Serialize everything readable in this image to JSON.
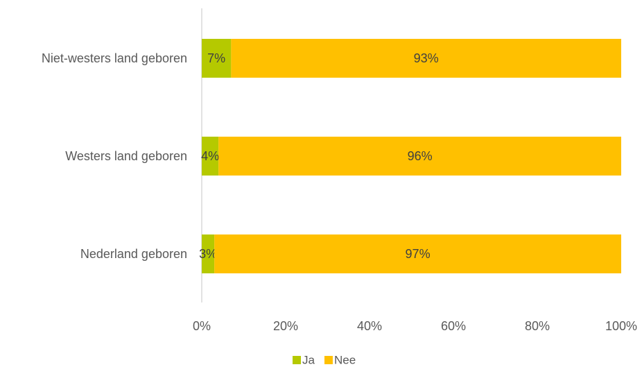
{
  "chart_data": {
    "type": "bar",
    "orientation": "horizontal",
    "stacked": true,
    "categories": [
      "Niet-westers land geboren",
      "Westers land geboren",
      "Nederland geboren"
    ],
    "series": [
      {
        "name": "Ja",
        "values": [
          7,
          4,
          3
        ],
        "labels": [
          "7%",
          "4%",
          "3%"
        ],
        "color": "#b5c900"
      },
      {
        "name": "Nee",
        "values": [
          93,
          96,
          97
        ],
        "labels": [
          "93%",
          "96%",
          "97%"
        ],
        "color": "#ffc000"
      }
    ],
    "xlim": [
      0,
      100
    ],
    "x_ticks": [
      "0%",
      "20%",
      "40%",
      "60%",
      "80%",
      "100%"
    ],
    "grid": false,
    "legend_position": "bottom"
  }
}
